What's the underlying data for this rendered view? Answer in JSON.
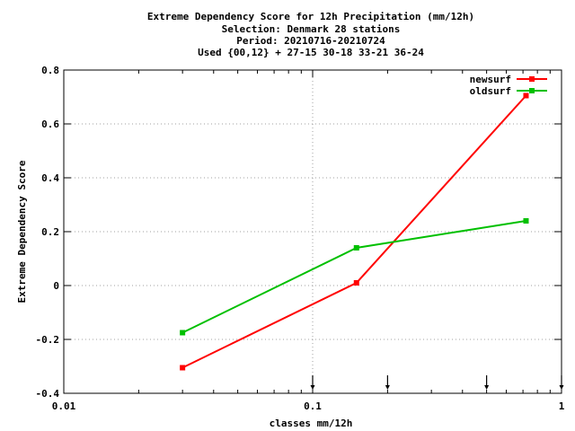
{
  "chart_data": {
    "type": "line",
    "title_lines": [
      "Extreme Dependency Score  for 12h Precipitation (mm/12h)",
      "Selection: Denmark     28 stations",
      "Period: 20210716-20210724",
      "Used {00,12} + 27-15 30-18 33-21 36-24"
    ],
    "xlabel": "classes mm/12h",
    "ylabel": "Extreme Dependency Score",
    "x_scale": "log",
    "xlim": [
      0.01,
      1
    ],
    "ylim": [
      -0.4,
      0.8
    ],
    "x_ticks": [
      0.01,
      0.1,
      1
    ],
    "x_tick_labels": [
      "0.01",
      "0.1",
      "1"
    ],
    "y_ticks": [
      -0.4,
      -0.2,
      0,
      0.2,
      0.4,
      0.6,
      0.8
    ],
    "y_tick_labels": [
      "-0.4",
      "-0.2",
      "0",
      "0.2",
      "0.4",
      "0.6",
      "0.8"
    ],
    "grid": "dotted at x=0.1 and y=0.6, 0.4, 0.2, 0, -0.2",
    "legend_position": "top-right",
    "series": [
      {
        "name": "newsurf",
        "color": "#ff0000",
        "x": [
          0.03,
          0.15,
          0.72
        ],
        "y": [
          -0.305,
          0.01,
          0.705
        ]
      },
      {
        "name": "oldsurf",
        "color": "#00c000",
        "x": [
          0.03,
          0.15,
          0.72
        ],
        "y": [
          -0.175,
          0.14,
          0.24
        ]
      }
    ],
    "threshold_markers_x": [
      0.1,
      0.2,
      0.5,
      1.0
    ]
  }
}
